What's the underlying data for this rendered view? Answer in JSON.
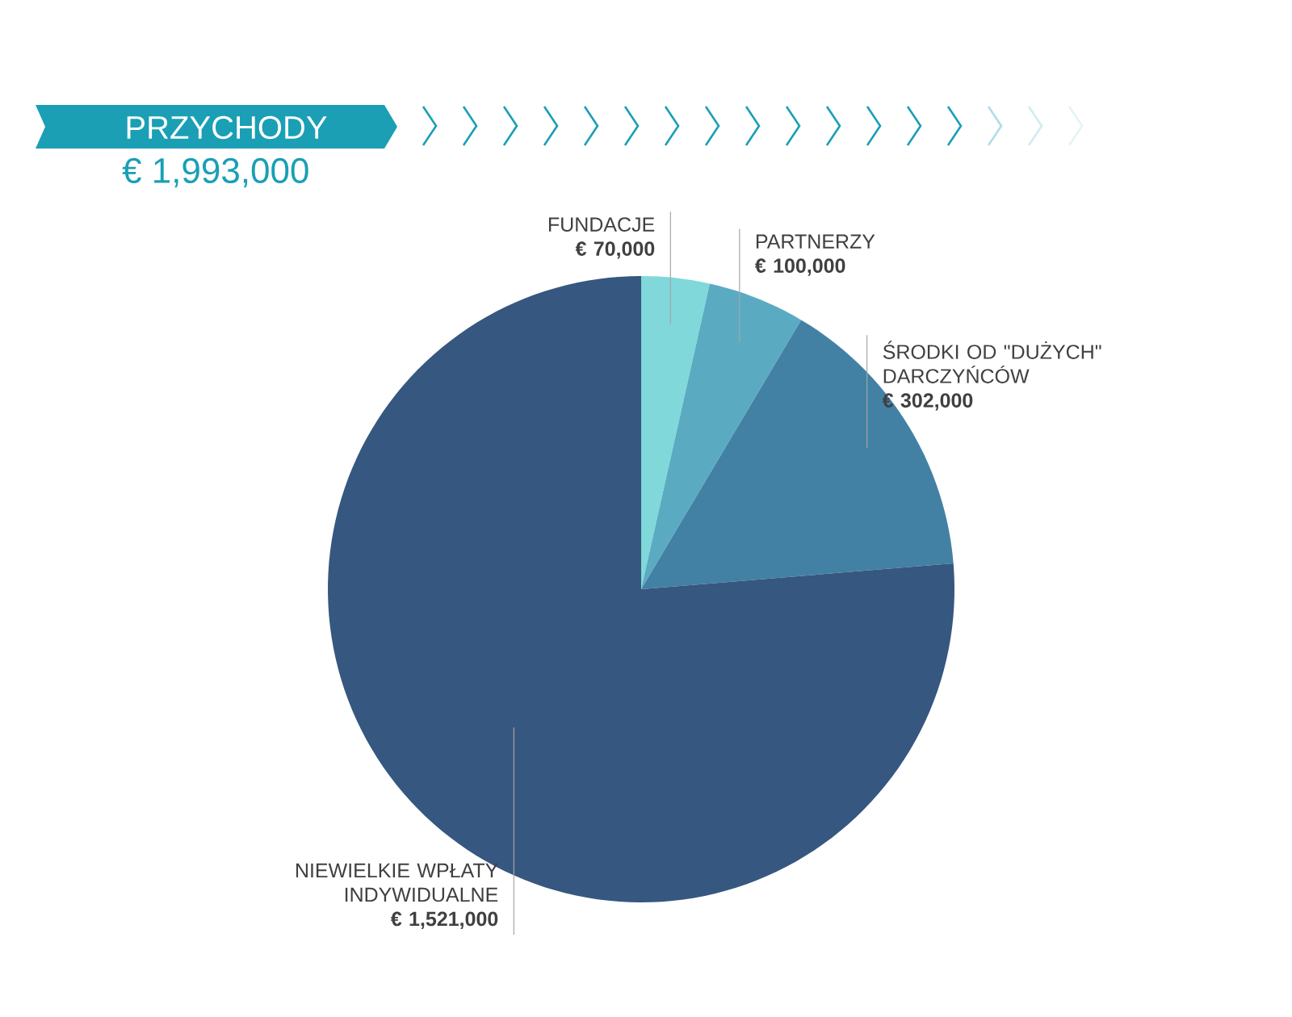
{
  "chart_data": {
    "type": "pie",
    "title": "PRZYCHODY",
    "subtitle": "€ 1,993,000",
    "categories": [
      "FUNDACJE",
      "PARTNERZY",
      "ŚRODKI OD \"DUŻYCH\" DARCZYŃCÓW",
      "NIEWIELKIE WPŁATY INDYWIDUALNE"
    ],
    "values": [
      70000,
      100000,
      302000,
      1521000
    ],
    "value_labels": [
      "€ 70,000",
      "€ 100,000",
      "€ 302,000",
      "€ 1,521,000"
    ],
    "colors": [
      "#80d8da",
      "#5aabc2",
      "#4281a4",
      "#36577f"
    ]
  }
}
